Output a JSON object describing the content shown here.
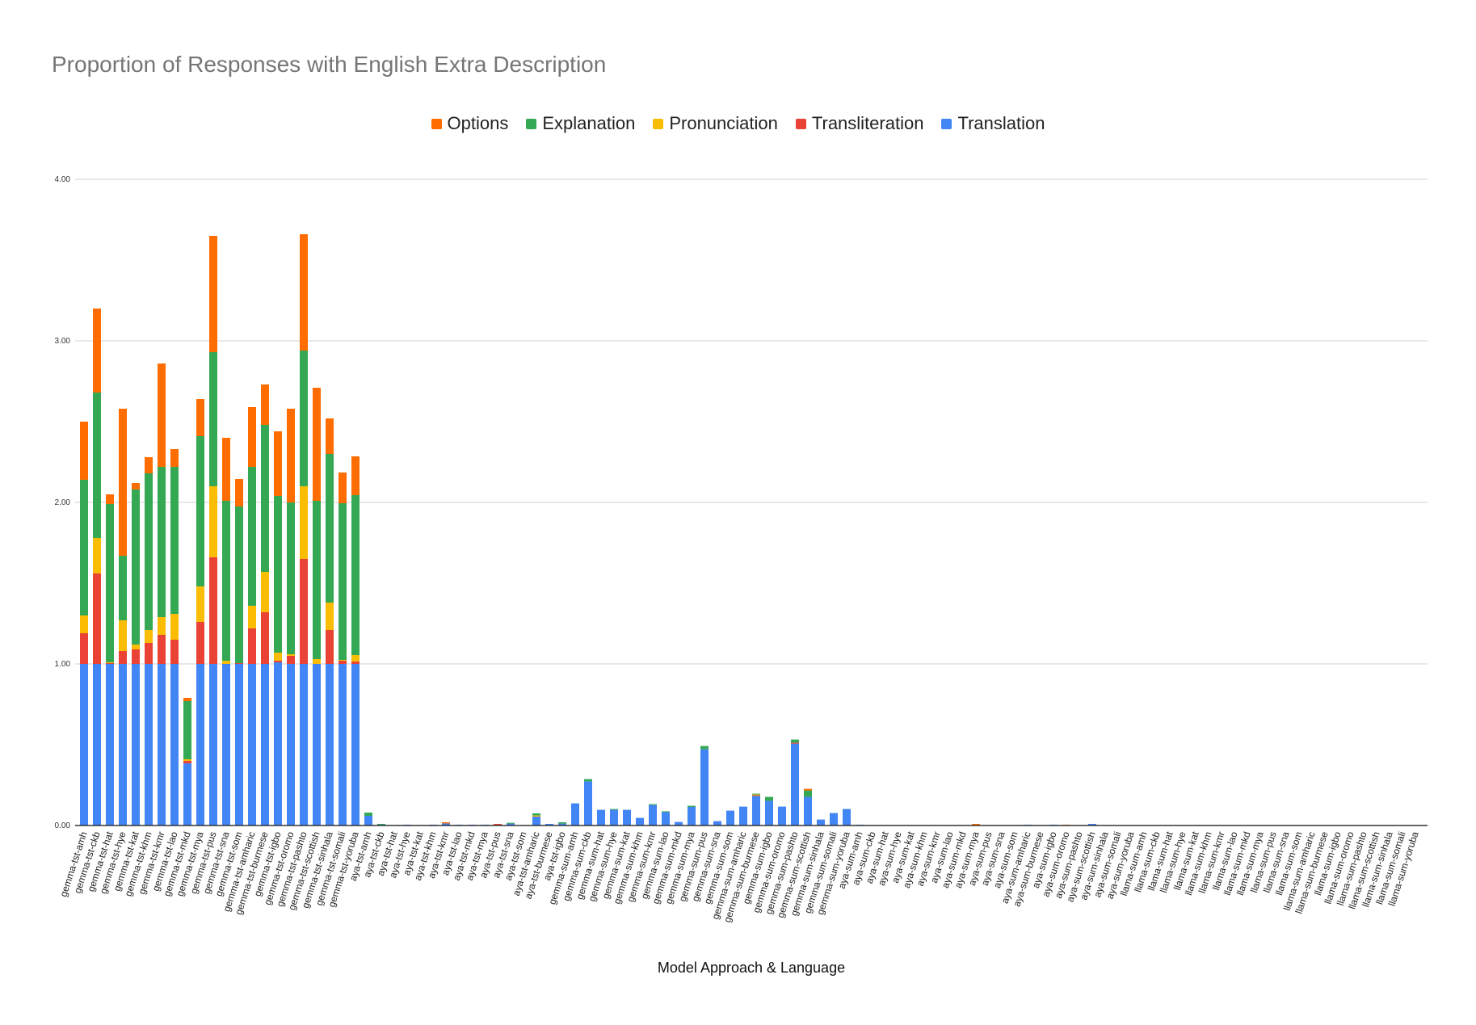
{
  "chart_data": {
    "type": "bar",
    "stacked": true,
    "title": "Proportion of Responses with English Extra Description",
    "xlabel": "Model Approach & Language",
    "ylabel": "",
    "ylim": [
      0,
      4
    ],
    "yticks": [
      "0.00",
      "1.00",
      "2.00",
      "3.00",
      "4.00"
    ],
    "grid": true,
    "legend_placement": "top",
    "legend_order": [
      "Options",
      "Explanation",
      "Pronunciation",
      "Transliteration",
      "Translation"
    ],
    "categories": [
      "gemma-tst-amh",
      "gemma-tst-ckb",
      "gemma-tst-hat",
      "gemma-tst-hye",
      "gemma-tst-kat",
      "gemma-tst-khm",
      "gemma-tst-kmr",
      "gemma-tst-lao",
      "gemma-tst-mkd",
      "gemma-tst-mya",
      "gemma-tst-pus",
      "gemma-tst-sna",
      "gemma-tst-som",
      "gemma-tst-amharic",
      "gemma-tst-burmese",
      "gemma-tst-igbo",
      "gemma-tst-oromo",
      "gemma-tst-pashto",
      "gemma-tst-scottish",
      "gemma-tst-sinhala",
      "gemma-tst-somali",
      "gemma-tst-yoruba",
      "aya-tst-amh",
      "aya-tst-ckb",
      "aya-tst-hat",
      "aya-tst-hye",
      "aya-tst-kat",
      "aya-tst-khm",
      "aya-tst-kmr",
      "aya-tst-lao",
      "aya-tst-mkd",
      "aya-tst-mya",
      "aya-tst-pus",
      "aya-tst-sna",
      "aya-tst-som",
      "aya-tst-amharic",
      "aya-tst-burmese",
      "aya-tst-igbo",
      "gemma-sum-amh",
      "gemma-sum-ckb",
      "gemma-sum-hat",
      "gemma-sum-hye",
      "gemma-sum-kat",
      "gemma-sum-khm",
      "gemma-sum-kmr",
      "gemma-sum-lao",
      "gemma-sum-mkd",
      "gemma-sum-mya",
      "gemma-sum-pus",
      "gemma-sum-sna",
      "gemma-sum-som",
      "gemma-sum-amharic",
      "gemma-sum-burmese",
      "gemma-sum-igbo",
      "gemma-sum-oromo",
      "gemma-sum-pashto",
      "gemma-sum-scottish",
      "gemma-sum-sinhala",
      "gemma-sum-somali",
      "gemma-sum-yoruba",
      "aya-sum-amh",
      "aya-sum-ckb",
      "aya-sum-hat",
      "aya-sum-hye",
      "aya-sum-kat",
      "aya-sum-khm",
      "aya-sum-kmr",
      "aya-sum-lao",
      "aya-sum-mkd",
      "aya-sum-mya",
      "aya-sum-pus",
      "aya-sum-sna",
      "aya-sum-som",
      "aya-sum-amharic",
      "aya-sum-burmese",
      "aya-sum-igbo",
      "aya-sum-oromo",
      "aya-sum-pashto",
      "aya-sum-scottish",
      "aya-sum-sinhala",
      "aya-sum-somali",
      "aya-sum-yoruba",
      "llama-sum-amh",
      "llama-sum-ckb",
      "llama-sum-hat",
      "llama-sum-hye",
      "llama-sum-kat",
      "llama-sum-khm",
      "llama-sum-kmr",
      "llama-sum-lao",
      "llama-sum-mkd",
      "llama-sum-mya",
      "llama-sum-pus",
      "llama-sum-sna",
      "llama-sum-som",
      "llama-sum-amharic",
      "llama-sum-burmese",
      "llama-sum-igbo",
      "llama-sum-oromo",
      "llama-sum-pashto",
      "llama-sum-scottish",
      "llama-sum-sinhala",
      "llama-sum-somali",
      "llama-sum-yoruba"
    ],
    "series": [
      {
        "name": "Translation",
        "color": "#4285F4",
        "values": [
          1,
          1,
          1,
          1,
          1,
          1,
          1,
          1,
          0.385,
          1,
          1,
          1,
          1,
          1,
          1,
          1.01,
          1,
          1,
          1,
          1,
          1,
          1,
          0.06,
          0.005,
          0,
          0.005,
          0,
          0.005,
          0.013,
          0.005,
          0.005,
          0.005,
          0.003,
          0.012,
          0,
          0.055,
          0.01,
          0.012,
          0.137,
          0.273,
          0.097,
          0.097,
          0.097,
          0.047,
          0.127,
          0.083,
          0.022,
          0.115,
          0.472,
          0.027,
          0.092,
          0.117,
          0.183,
          0.153,
          0.117,
          0.507,
          0.177,
          0.037,
          0.077,
          0.102,
          0.005,
          0,
          0,
          0,
          0,
          0,
          0,
          0,
          0,
          0,
          0,
          0,
          0,
          0.005,
          0,
          0.005,
          0,
          0,
          0.01,
          0,
          0,
          0,
          0,
          0,
          0,
          0,
          0,
          0,
          0,
          0,
          0,
          0,
          0,
          0,
          0,
          0,
          0,
          0,
          0,
          0,
          0,
          0,
          0,
          0
        ]
      },
      {
        "name": "Transliteration",
        "color": "#EA4335",
        "values": [
          0.19,
          0.56,
          0.005,
          0.08,
          0.09,
          0.13,
          0.18,
          0.15,
          0.015,
          0.26,
          0.66,
          0,
          0.005,
          0.22,
          0.32,
          0.01,
          0.05,
          0.65,
          0,
          0.21,
          0.02,
          0.015,
          0,
          0,
          0,
          0,
          0,
          0,
          0,
          0,
          0,
          0,
          0.007,
          0,
          0,
          0,
          0,
          0,
          0,
          0,
          0,
          0,
          0,
          0,
          0,
          0,
          0,
          0,
          0,
          0,
          0,
          0,
          0.004,
          0,
          0,
          0.006,
          0,
          0,
          0,
          0,
          0,
          0,
          0,
          0,
          0,
          0,
          0,
          0,
          0,
          0,
          0,
          0,
          0,
          0,
          0,
          0,
          0,
          0,
          0,
          0,
          0,
          0,
          0,
          0,
          0,
          0,
          0,
          0,
          0,
          0,
          0,
          0,
          0,
          0,
          0,
          0,
          0,
          0,
          0,
          0,
          0,
          0,
          0,
          0
        ]
      },
      {
        "name": "Pronunciation",
        "color": "#FBBC04",
        "values": [
          0.11,
          0.22,
          0.005,
          0.19,
          0.03,
          0.08,
          0.11,
          0.16,
          0.01,
          0.22,
          0.44,
          0.02,
          0,
          0.14,
          0.25,
          0.05,
          0.01,
          0.45,
          0.03,
          0.17,
          0.005,
          0.04,
          0,
          0,
          0,
          0,
          0,
          0,
          0,
          0,
          0,
          0,
          0,
          0,
          0,
          0.007,
          0,
          0,
          0,
          0,
          0,
          0,
          0,
          0,
          0,
          0,
          0,
          0,
          0,
          0,
          0,
          0,
          0.005,
          0,
          0,
          0,
          0,
          0,
          0,
          0,
          0,
          0,
          0,
          0,
          0,
          0,
          0,
          0,
          0,
          0,
          0,
          0,
          0,
          0,
          0,
          0,
          0,
          0,
          0,
          0,
          0,
          0,
          0,
          0,
          0,
          0,
          0,
          0,
          0,
          0,
          0,
          0,
          0,
          0,
          0,
          0,
          0,
          0,
          0,
          0,
          0,
          0,
          0,
          0
        ]
      },
      {
        "name": "Explanation",
        "color": "#34A853",
        "values": [
          0.84,
          0.9,
          0.98,
          0.4,
          0.96,
          0.97,
          0.93,
          0.91,
          0.36,
          0.93,
          0.83,
          0.99,
          0.97,
          0.86,
          0.91,
          0.97,
          0.94,
          0.84,
          0.98,
          0.92,
          0.97,
          0.99,
          0.02,
          0.005,
          0,
          0,
          0,
          0,
          0,
          0,
          0,
          0,
          0,
          0.003,
          0,
          0.013,
          0,
          0.008,
          0,
          0.014,
          0,
          0.003,
          0,
          0,
          0.005,
          0.004,
          0,
          0.007,
          0.02,
          0,
          0,
          0,
          0.005,
          0.024,
          0,
          0.019,
          0.04,
          0,
          0,
          0,
          0,
          0,
          0,
          0,
          0,
          0,
          0,
          0,
          0,
          0,
          0,
          0,
          0,
          0,
          0,
          0,
          0,
          0,
          0,
          0,
          0,
          0,
          0,
          0,
          0,
          0,
          0,
          0,
          0,
          0,
          0,
          0,
          0,
          0,
          0,
          0,
          0,
          0,
          0,
          0,
          0,
          0,
          0,
          0
        ]
      },
      {
        "name": "Options",
        "color": "#FF6D01",
        "values": [
          0.36,
          0.52,
          0.06,
          0.91,
          0.04,
          0.1,
          0.64,
          0.11,
          0.02,
          0.23,
          0.72,
          0.39,
          0.17,
          0.37,
          0.25,
          0.4,
          0.58,
          0.72,
          0.7,
          0.22,
          0.19,
          0.24,
          0,
          0,
          0,
          0,
          0,
          0,
          0.007,
          0,
          0,
          0,
          0,
          0,
          0,
          0,
          0,
          0,
          0,
          0,
          0,
          0,
          0,
          0,
          0,
          0,
          0,
          0,
          0,
          0,
          0,
          0,
          0,
          0,
          0,
          0,
          0.01,
          0,
          0,
          0,
          0,
          0,
          0,
          0,
          0,
          0,
          0,
          0,
          0,
          0.01,
          0,
          0,
          0,
          0,
          0,
          0,
          0.005,
          0,
          0,
          0,
          0,
          0,
          0,
          0,
          0,
          0,
          0,
          0,
          0,
          0,
          0,
          0,
          0,
          0,
          0,
          0,
          0,
          0,
          0,
          0,
          0,
          0,
          0,
          0
        ]
      }
    ]
  }
}
